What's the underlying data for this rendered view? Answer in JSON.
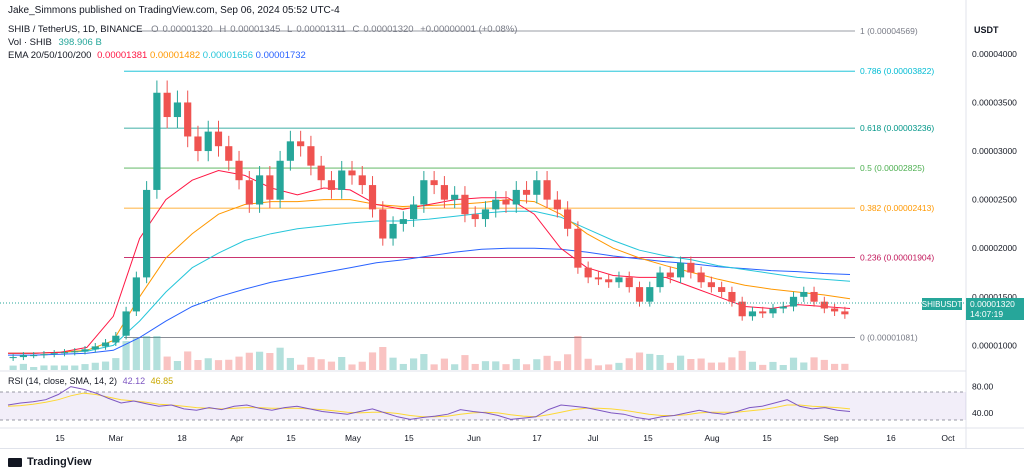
{
  "header": {
    "publisher": "Jake_Simmons published on TradingView.com, Sep 06, 2024 05:52 UTC-4",
    "symbol": "SHIB / TetherUS, 1D, BINANCE",
    "ohlc": {
      "o_label": "O",
      "o": "0.00001320",
      "h_label": "H",
      "h": "0.00001345",
      "l_label": "L",
      "l": "0.00001311",
      "c_label": "C",
      "c": "0.00001320",
      "change": "+0.00000001 (+0.08%)"
    },
    "volume": {
      "label": "Vol · SHIB",
      "value": "398.906 B"
    },
    "ema": {
      "label": "EMA 20/50/100/200",
      "v20": "0.00001381",
      "v50": "0.00001482",
      "v100": "0.00001656",
      "v200": "0.00001732"
    },
    "currency": "USDT"
  },
  "colors": {
    "up": "#26a69a",
    "down": "#ef5350",
    "ema20": "#ff1744",
    "ema50": "#ff9800",
    "ema100": "#26c6da",
    "ema200": "#2962ff",
    "rsi": "#7e57c2",
    "rsi_ma": "#fdd835"
  },
  "chart_data": [
    {
      "type": "candlestick",
      "title": "SHIB / TetherUS, 1D, BINANCE",
      "y_axis": {
        "ylim": [
          8.5e-06,
          4.4e-05
        ],
        "ticks": [
          "0.00004000",
          "0.00003500",
          "0.00003000",
          "0.00002500",
          "0.00002000",
          "0.00001500",
          "0.00001000"
        ],
        "tick_values": [
          4e-05,
          3.5e-05,
          3e-05,
          2.5e-05,
          2e-05,
          1.5e-05,
          1e-05
        ]
      },
      "x_axis": {
        "tick_labels": [
          "15",
          "Mar",
          "18",
          "Apr",
          "15",
          "May",
          "15",
          "Jun",
          "17",
          "Jul",
          "15",
          "Aug",
          "15",
          "Sep",
          "16",
          "Oct"
        ]
      },
      "fib_levels": [
        {
          "label": "1 (0.00004569)",
          "value": 4.569e-05,
          "color": "#787b86"
        },
        {
          "label": "0.786 (0.00003822)",
          "value": 3.822e-05,
          "color": "#00bcd4"
        },
        {
          "label": "0.618 (0.00003236)",
          "value": 3.236e-05,
          "color": "#009688"
        },
        {
          "label": "0.5 (0.00002825)",
          "value": 2.825e-05,
          "color": "#4caf50"
        },
        {
          "label": "0.382 (0.00002413)",
          "value": 2.413e-05,
          "color": "#ff9800"
        },
        {
          "label": "0.236 (0.00001904)",
          "value": 1.904e-05,
          "color": "#c2185b"
        },
        {
          "label": "0 (0.00001081)",
          "value": 1.081e-05,
          "color": "#787b86"
        }
      ],
      "last_price": {
        "symbol": "SHIBUSDT",
        "value": "0.00001320",
        "countdown": "14:07:19"
      },
      "close_series": [
        8.8e-06,
        9e-06,
        9e-06,
        9.1e-06,
        9.2e-06,
        9.3e-06,
        9.4e-06,
        9.6e-06,
        9.9e-06,
        1.03e-05,
        1.1e-05,
        1.35e-05,
        1.7e-05,
        2.6e-05,
        3.6e-05,
        3.35e-05,
        3.5e-05,
        3.15e-05,
        3e-05,
        3.2e-05,
        3.05e-05,
        2.9e-05,
        2.7e-05,
        2.45e-05,
        2.75e-05,
        2.5e-05,
        2.9e-05,
        3.1e-05,
        3.05e-05,
        2.85e-05,
        2.7e-05,
        2.6e-05,
        2.8e-05,
        2.75e-05,
        2.65e-05,
        2.4e-05,
        2.1e-05,
        2.25e-05,
        2.3e-05,
        2.45e-05,
        2.7e-05,
        2.65e-05,
        2.5e-05,
        2.55e-05,
        2.35e-05,
        2.3e-05,
        2.4e-05,
        2.5e-05,
        2.45e-05,
        2.6e-05,
        2.55e-05,
        2.7e-05,
        2.5e-05,
        2.4e-05,
        2.2e-05,
        1.8e-05,
        1.7e-05,
        1.68e-05,
        1.65e-05,
        1.7e-05,
        1.6e-05,
        1.45e-05,
        1.6e-05,
        1.75e-05,
        1.7e-05,
        1.85e-05,
        1.75e-05,
        1.65e-05,
        1.6e-05,
        1.55e-05,
        1.45e-05,
        1.3e-05,
        1.35e-05,
        1.33e-05,
        1.38e-05,
        1.4e-05,
        1.5e-05,
        1.55e-05,
        1.45e-05,
        1.38e-05,
        1.35e-05,
        1.32e-05
      ],
      "ema20": [
        9.2e-06,
        9.2e-06,
        9.3e-06,
        9.8e-06,
        1.3e-05,
        2.1e-05,
        2.5e-05,
        2.7e-05,
        2.8e-05,
        2.75e-05,
        2.62e-05,
        2.55e-05,
        2.62e-05,
        2.6e-05,
        2.45e-05,
        2.4e-05,
        2.45e-05,
        2.5e-05,
        2.52e-05,
        2.52e-05,
        2.35e-05,
        2e-05,
        1.8e-05,
        1.72e-05,
        1.7e-05,
        1.7e-05,
        1.6e-05,
        1.5e-05,
        1.4e-05,
        1.38e-05,
        1.42e-05,
        1.4e-05,
        1.38e-05
      ],
      "ema50": [
        9.2e-06,
        9.2e-06,
        9.3e-06,
        9.5e-06,
        1.05e-05,
        1.5e-05,
        1.9e-05,
        2.15e-05,
        2.35e-05,
        2.45e-05,
        2.48e-05,
        2.48e-05,
        2.5e-05,
        2.5e-05,
        2.45e-05,
        2.43e-05,
        2.44e-05,
        2.45e-05,
        2.47e-05,
        2.5e-05,
        2.48e-05,
        2.35e-05,
        2.15e-05,
        2e-05,
        1.9e-05,
        1.82e-05,
        1.75e-05,
        1.68e-05,
        1.62e-05,
        1.58e-05,
        1.55e-05,
        1.52e-05,
        1.48e-05
      ],
      "ema100": [
        9.2e-06,
        9.2e-06,
        9.3e-06,
        9.4e-06,
        1e-05,
        1.25e-05,
        1.55e-05,
        1.8e-05,
        1.95e-05,
        2.08e-05,
        2.15e-05,
        2.2e-05,
        2.23e-05,
        2.26e-05,
        2.28e-05,
        2.28e-05,
        2.3e-05,
        2.33e-05,
        2.36e-05,
        2.38e-05,
        2.38e-05,
        2.32e-05,
        2.2e-05,
        2.08e-05,
        1.98e-05,
        1.92e-05,
        1.88e-05,
        1.82e-05,
        1.78e-05,
        1.74e-05,
        1.7e-05,
        1.68e-05,
        1.66e-05
      ],
      "ema200": [
        9e-06,
        9e-06,
        9.1e-06,
        9.2e-06,
        9.5e-06,
        1.08e-05,
        1.25e-05,
        1.4e-05,
        1.5e-05,
        1.58e-05,
        1.65e-05,
        1.7e-05,
        1.75e-05,
        1.8e-05,
        1.85e-05,
        1.88e-05,
        1.92e-05,
        1.96e-05,
        1.99e-05,
        2e-05,
        2e-05,
        1.99e-05,
        1.96e-05,
        1.92e-05,
        1.89e-05,
        1.86e-05,
        1.84e-05,
        1.81e-05,
        1.79e-05,
        1.77e-05,
        1.76e-05,
        1.74e-05,
        1.73e-05
      ]
    },
    {
      "type": "line",
      "title": "RSI (14, close, SMA, 14, 2)",
      "values_label": "42.12",
      "ma_label": "46.85",
      "y_axis": {
        "ticks": [
          "80.00",
          "40.00"
        ],
        "tick_values": [
          80,
          40
        ],
        "bands": [
          30,
          70
        ],
        "ylim": [
          20,
          90
        ]
      },
      "rsi": [
        52,
        55,
        57,
        60,
        68,
        80,
        76,
        70,
        62,
        55,
        58,
        54,
        50,
        52,
        46,
        44,
        48,
        45,
        50,
        52,
        47,
        44,
        48,
        50,
        46,
        42,
        40,
        38,
        42,
        46,
        40,
        34,
        30,
        33,
        35,
        38,
        45,
        42,
        40,
        36,
        30,
        32,
        34,
        45,
        52,
        50,
        48,
        44,
        40,
        38,
        33,
        30,
        34,
        36,
        40,
        44,
        40,
        38,
        42,
        48,
        50,
        55,
        60,
        50,
        46,
        48,
        44,
        42
      ],
      "rsi_ma": [
        50,
        51,
        53,
        56,
        60,
        66,
        70,
        68,
        64,
        60,
        58,
        56,
        53,
        52,
        50,
        48,
        47,
        46,
        47,
        48,
        48,
        47,
        47,
        47,
        46,
        45,
        43,
        41,
        40,
        41,
        41,
        39,
        36,
        34,
        34,
        35,
        38,
        40,
        41,
        40,
        37,
        35,
        34,
        37,
        41,
        45,
        47,
        47,
        46,
        44,
        41,
        38,
        36,
        36,
        37,
        40,
        41,
        41,
        41,
        43,
        45,
        48,
        52,
        52,
        50,
        49,
        48,
        46
      ]
    }
  ],
  "footer": {
    "logo": "TradingView"
  }
}
